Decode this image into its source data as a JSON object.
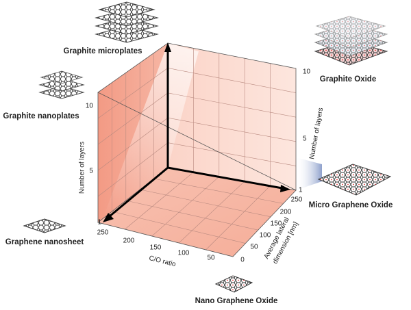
{
  "materials": [
    "Graphite microplates",
    "Graphite nanoplates",
    "Graphene nanosheet",
    "Graphite Oxide",
    "Micro Graphene Oxide",
    "Nano Graphene Oxide"
  ],
  "axes": {
    "left_layers": {
      "label": "Number of layers",
      "ticks": [
        10,
        5,
        1
      ]
    },
    "right_layers": {
      "label": "Number of layers",
      "ticks": [
        10,
        5,
        1
      ]
    },
    "co_ratio": {
      "label": "C/O ratio",
      "ticks": [
        250,
        200,
        150,
        100,
        50
      ]
    },
    "lateral": {
      "label": [
        "Average lateral",
        "dimension [nm]"
      ],
      "ticks": [
        250,
        200,
        150,
        100,
        50,
        0
      ]
    }
  }
}
